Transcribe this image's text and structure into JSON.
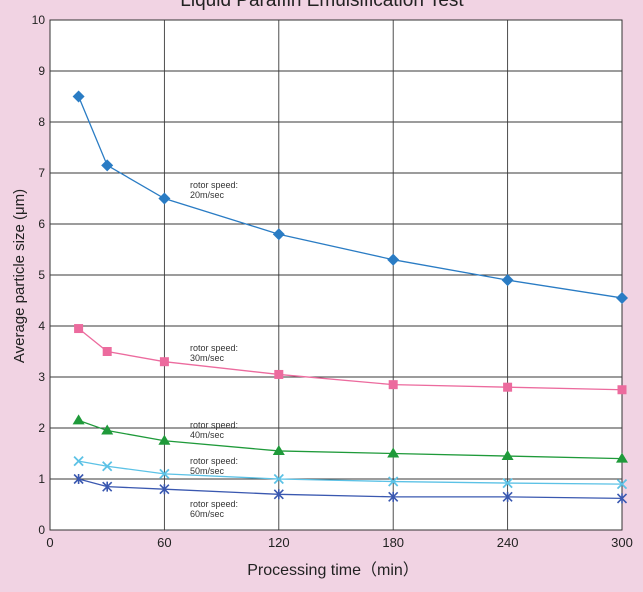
{
  "chart_data": {
    "type": "line",
    "title": "Liquid Paraffin Emulsification Test",
    "xlabel": "Processing time（min）",
    "ylabel": "Average particle size (μm)",
    "xlim": [
      0,
      300
    ],
    "ylim": [
      0,
      10
    ],
    "x_ticks": [
      0,
      60,
      120,
      180,
      240,
      300
    ],
    "y_ticks": [
      0,
      1,
      2,
      3,
      4,
      5,
      6,
      7,
      8,
      9,
      10
    ],
    "grid": true,
    "series": [
      {
        "name": "rotor speed: 20m/sec",
        "label_lines": [
          "rotor speed:",
          "20m/sec"
        ],
        "color": "#2a7cc4",
        "marker": "diamond",
        "x": [
          15,
          30,
          60,
          120,
          180,
          240,
          300
        ],
        "values": [
          8.5,
          7.15,
          6.5,
          5.8,
          5.3,
          4.9,
          4.55
        ]
      },
      {
        "name": "rotor speed: 30m/sec",
        "label_lines": [
          "rotor speed:",
          "30m/sec"
        ],
        "color": "#ec6b9e",
        "marker": "square",
        "x": [
          15,
          30,
          60,
          120,
          180,
          240,
          300
        ],
        "values": [
          3.95,
          3.5,
          3.3,
          3.05,
          2.85,
          2.8,
          2.75
        ]
      },
      {
        "name": "rotor speed: 40m/sec",
        "label_lines": [
          "rotor speed:",
          "40m/sec"
        ],
        "color": "#1f9a3a",
        "marker": "triangle",
        "x": [
          15,
          30,
          60,
          120,
          180,
          240,
          300
        ],
        "values": [
          2.15,
          1.95,
          1.75,
          1.55,
          1.5,
          1.45,
          1.4
        ]
      },
      {
        "name": "rotor speed: 50m/sec",
        "label_lines": [
          "rotor speed:",
          "50m/sec"
        ],
        "color": "#5cc2e6",
        "marker": "x",
        "x": [
          15,
          30,
          60,
          120,
          180,
          240,
          300
        ],
        "values": [
          1.35,
          1.25,
          1.1,
          1.0,
          0.95,
          0.92,
          0.9
        ]
      },
      {
        "name": "rotor speed: 60m/sec",
        "label_lines": [
          "rotor speed:",
          "60m/sec"
        ],
        "color": "#3a58b0",
        "marker": "star",
        "x": [
          15,
          30,
          60,
          120,
          180,
          240,
          300
        ],
        "values": [
          1.0,
          0.85,
          0.8,
          0.7,
          0.65,
          0.65,
          0.62
        ]
      }
    ]
  }
}
